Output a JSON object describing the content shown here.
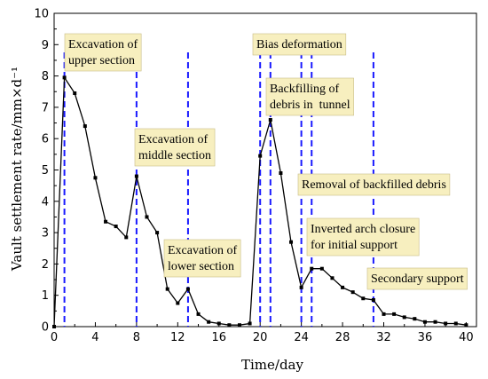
{
  "chart_data": {
    "type": "line",
    "xlabel": "Time/day",
    "ylabel": "Vault settlement rate/mm×d⁻¹",
    "xlim": [
      0,
      41
    ],
    "ylim": [
      0,
      10
    ],
    "xticks": [
      0,
      4,
      8,
      12,
      16,
      20,
      24,
      28,
      32,
      36,
      40
    ],
    "yticks": [
      0,
      1,
      2,
      3,
      4,
      5,
      6,
      7,
      8,
      9,
      10
    ],
    "grid": false,
    "series": [
      {
        "color": "#000000",
        "marker": "square",
        "points": [
          [
            0,
            0.0
          ],
          [
            1,
            7.95
          ],
          [
            2,
            7.45
          ],
          [
            3,
            6.4
          ],
          [
            4,
            4.75
          ],
          [
            5,
            3.35
          ],
          [
            6,
            3.2
          ],
          [
            7,
            2.85
          ],
          [
            8,
            4.8
          ],
          [
            9,
            3.5
          ],
          [
            10,
            3.0
          ],
          [
            11,
            1.2
          ],
          [
            12,
            0.75
          ],
          [
            13,
            1.2
          ],
          [
            14,
            0.4
          ],
          [
            15,
            0.15
          ],
          [
            16,
            0.1
          ],
          [
            17,
            0.05
          ],
          [
            18,
            0.05
          ],
          [
            19,
            0.1
          ],
          [
            20,
            5.45
          ],
          [
            21,
            6.6
          ],
          [
            22,
            4.9
          ],
          [
            23,
            2.7
          ],
          [
            24,
            1.25
          ],
          [
            25,
            1.85
          ],
          [
            26,
            1.85
          ],
          [
            27,
            1.55
          ],
          [
            28,
            1.25
          ],
          [
            29,
            1.1
          ],
          [
            30,
            0.9
          ],
          [
            31,
            0.85
          ],
          [
            32,
            0.4
          ],
          [
            33,
            0.4
          ],
          [
            34,
            0.3
          ],
          [
            35,
            0.25
          ],
          [
            36,
            0.15
          ],
          [
            37,
            0.15
          ],
          [
            38,
            0.1
          ],
          [
            39,
            0.1
          ],
          [
            40,
            0.05
          ]
        ]
      }
    ],
    "markers": {
      "color": "#1a1aff",
      "style": "dashed",
      "x": [
        1,
        8,
        13,
        20,
        21,
        24,
        25,
        31
      ]
    },
    "annotations": [
      {
        "lines": [
          "Excavation of",
          "upper section"
        ],
        "x": 1
      },
      {
        "lines": [
          "Excavation of",
          "middle section"
        ],
        "x": 8
      },
      {
        "lines": [
          "Excavation of",
          "lower section"
        ],
        "x": 13
      },
      {
        "lines": [
          "Bias deformation"
        ],
        "x": 20
      },
      {
        "lines": [
          "Backfilling of",
          "debris in  tunnel"
        ],
        "x": 21
      },
      {
        "lines": [
          "Removal of backfilled debris"
        ],
        "x": 24
      },
      {
        "lines": [
          "Inverted arch closure",
          "for initial support"
        ],
        "x": 25
      },
      {
        "lines": [
          "Secondary support"
        ],
        "x": 31
      }
    ]
  }
}
